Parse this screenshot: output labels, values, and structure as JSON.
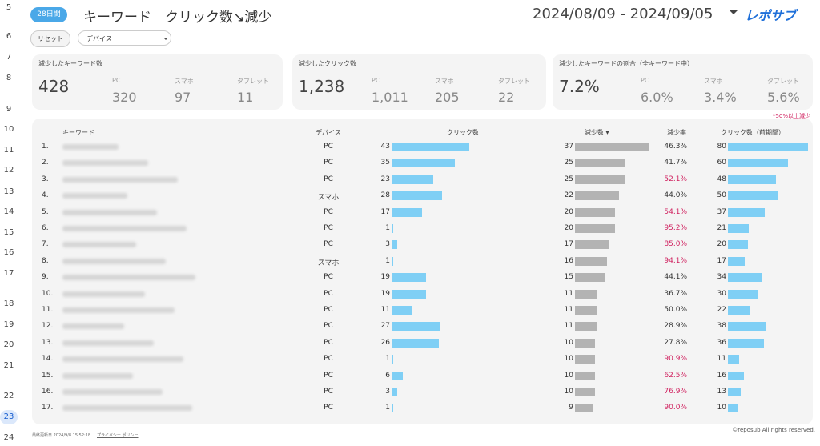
{
  "row_numbers": [
    "5",
    "6",
    "7",
    "8",
    "9",
    "10",
    "11",
    "12",
    "13",
    "14",
    "15",
    "16",
    "17",
    "18",
    "19",
    "20",
    "21",
    "22",
    "23",
    "24"
  ],
  "header": {
    "badge": "28日間",
    "title": "キーワード　クリック数↘減少",
    "date_range": "2024/08/09 - 2024/09/05",
    "logo": "レポサブ"
  },
  "controls": {
    "reset": "リセット",
    "device": "デバイス"
  },
  "kpis": [
    {
      "title": "減少したキーワード数",
      "main": "428",
      "items": [
        {
          "label": "PC",
          "value": "320"
        },
        {
          "label": "スマホ",
          "value": "97"
        },
        {
          "label": "タブレット",
          "value": "11"
        }
      ]
    },
    {
      "title": "減少したクリック数",
      "main": "1,238",
      "items": [
        {
          "label": "PC",
          "value": "1,011"
        },
        {
          "label": "スマホ",
          "value": "205"
        },
        {
          "label": "タブレット",
          "value": "22"
        }
      ]
    },
    {
      "title": "減少したキーワードの割合（全キーワード中）",
      "main": "7.2%",
      "items": [
        {
          "label": "PC",
          "value": "6.0%"
        },
        {
          "label": "スマホ",
          "value": "3.4%"
        },
        {
          "label": "タブレット",
          "value": "5.6%"
        }
      ]
    }
  ],
  "note": "*50%以上減少",
  "table": {
    "headers": [
      "キーワード",
      "デバイス",
      "クリック数",
      "減少数 ▾",
      "減少率",
      "クリック数（前期間）"
    ],
    "rows": [
      {
        "rank": "1.",
        "device": "PC",
        "clicks": 43,
        "decrease": 37,
        "rate": "46.3%",
        "highlight": false,
        "prev": 80
      },
      {
        "rank": "2.",
        "device": "PC",
        "clicks": 35,
        "decrease": 25,
        "rate": "41.7%",
        "highlight": false,
        "prev": 60
      },
      {
        "rank": "3.",
        "device": "PC",
        "clicks": 23,
        "decrease": 25,
        "rate": "52.1%",
        "highlight": true,
        "prev": 48
      },
      {
        "rank": "4.",
        "device": "スマホ",
        "clicks": 28,
        "decrease": 22,
        "rate": "44.0%",
        "highlight": false,
        "prev": 50
      },
      {
        "rank": "5.",
        "device": "PC",
        "clicks": 17,
        "decrease": 20,
        "rate": "54.1%",
        "highlight": true,
        "prev": 37
      },
      {
        "rank": "6.",
        "device": "PC",
        "clicks": 1,
        "decrease": 20,
        "rate": "95.2%",
        "highlight": true,
        "prev": 21
      },
      {
        "rank": "7.",
        "device": "PC",
        "clicks": 3,
        "decrease": 17,
        "rate": "85.0%",
        "highlight": true,
        "prev": 20
      },
      {
        "rank": "8.",
        "device": "スマホ",
        "clicks": 1,
        "decrease": 16,
        "rate": "94.1%",
        "highlight": true,
        "prev": 17
      },
      {
        "rank": "9.",
        "device": "PC",
        "clicks": 19,
        "decrease": 15,
        "rate": "44.1%",
        "highlight": false,
        "prev": 34
      },
      {
        "rank": "10.",
        "device": "PC",
        "clicks": 19,
        "decrease": 11,
        "rate": "36.7%",
        "highlight": false,
        "prev": 30
      },
      {
        "rank": "11.",
        "device": "PC",
        "clicks": 11,
        "decrease": 11,
        "rate": "50.0%",
        "highlight": false,
        "prev": 22
      },
      {
        "rank": "12.",
        "device": "PC",
        "clicks": 27,
        "decrease": 11,
        "rate": "28.9%",
        "highlight": false,
        "prev": 38
      },
      {
        "rank": "13.",
        "device": "PC",
        "clicks": 26,
        "decrease": 10,
        "rate": "27.8%",
        "highlight": false,
        "prev": 36
      },
      {
        "rank": "14.",
        "device": "PC",
        "clicks": 1,
        "decrease": 10,
        "rate": "90.9%",
        "highlight": true,
        "prev": 11
      },
      {
        "rank": "15.",
        "device": "PC",
        "clicks": 6,
        "decrease": 10,
        "rate": "62.5%",
        "highlight": true,
        "prev": 16
      },
      {
        "rank": "16.",
        "device": "PC",
        "clicks": 3,
        "decrease": 10,
        "rate": "76.9%",
        "highlight": true,
        "prev": 13
      },
      {
        "rank": "17.",
        "device": "PC",
        "clicks": 1,
        "decrease": 9,
        "rate": "90.0%",
        "highlight": true,
        "prev": 10
      }
    ]
  },
  "footer": {
    "updated": "最終更新日 2024/9/8 15:52:18",
    "privacy": "プライバシー ポリシー",
    "copyright": "©reposub All rights reserved."
  }
}
